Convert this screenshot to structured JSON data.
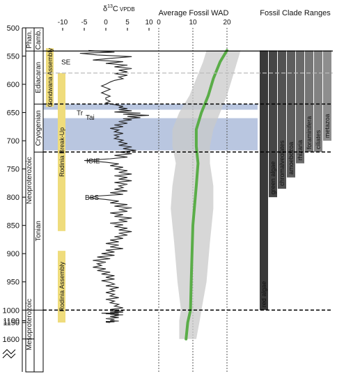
{
  "chart_data": {
    "type": "line",
    "y_axis": {
      "ticks": [
        "500",
        "550",
        "600",
        "650",
        "700",
        "750",
        "800",
        "850",
        "900",
        "950",
        "1000",
        "1100",
        "1150",
        "1600"
      ],
      "label": ""
    },
    "strat": {
      "eons": [
        {
          "label": "Phan.",
          "from": 500,
          "to": 541
        },
        {
          "label": "Neoproterozoic",
          "from": 541,
          "to": 1000
        },
        {
          "label": "Mesoproterozoic",
          "from": 1000,
          "to": 1600
        }
      ],
      "periods": [
        {
          "label": "Camb.",
          "from": 500,
          "to": 541
        },
        {
          "label": "Ediacaran",
          "from": 541,
          "to": 635
        },
        {
          "label": "Cryogenian",
          "from": 635,
          "to": 720
        },
        {
          "label": "Tonian",
          "from": 720,
          "to": 1000
        }
      ],
      "events": [
        {
          "label": "Gondwana Assembly",
          "from": 536,
          "to": 640
        },
        {
          "label": "Rodinia Break-Up",
          "from": 580,
          "to": 860
        },
        {
          "label": "Rodinia Assembly",
          "from": 895,
          "to": 1150
        }
      ],
      "glaciations": [
        {
          "from": 635,
          "to": 645
        },
        {
          "from": 660,
          "to": 717
        }
      ]
    },
    "d13c": {
      "title_prefix": "δ",
      "title_sup": "13",
      "title_main": "C",
      "title_sub": "VPDB",
      "ticks": [
        "-10",
        "-5",
        "0",
        "5",
        "10"
      ],
      "tick_values": [
        -10,
        -5,
        0,
        5,
        10
      ],
      "events": [
        {
          "label": "SE",
          "age": 560
        },
        {
          "label": "Tr",
          "age": 650
        },
        {
          "label": "Tai",
          "age": 658
        },
        {
          "label": "ICIE",
          "age": 735
        },
        {
          "label": "BSS",
          "age": 800
        }
      ],
      "series": [
        [
          540,
          -4
        ],
        [
          543,
          2
        ],
        [
          545,
          -6
        ],
        [
          548,
          -2
        ],
        [
          551,
          6
        ],
        [
          554,
          1
        ],
        [
          557,
          -3
        ],
        [
          560,
          4
        ],
        [
          563,
          0
        ],
        [
          566,
          5
        ],
        [
          569,
          2
        ],
        [
          572,
          6
        ],
        [
          575,
          3
        ],
        [
          578,
          5
        ],
        [
          581,
          2
        ],
        [
          584,
          5
        ],
        [
          587,
          3
        ],
        [
          590,
          4
        ],
        [
          593,
          2
        ],
        [
          596,
          1
        ],
        [
          600,
          0
        ],
        [
          603,
          -1
        ],
        [
          606,
          0
        ],
        [
          609,
          1
        ],
        [
          612,
          0
        ],
        [
          615,
          -1
        ],
        [
          618,
          0
        ],
        [
          621,
          1
        ],
        [
          624,
          0
        ],
        [
          627,
          0
        ],
        [
          630,
          1
        ],
        [
          633,
          0
        ],
        [
          636,
          2
        ],
        [
          639,
          4
        ],
        [
          641,
          3
        ],
        [
          643,
          5
        ],
        [
          645,
          3
        ],
        [
          647,
          6
        ],
        [
          649,
          2
        ],
        [
          651,
          8
        ],
        [
          653,
          4
        ],
        [
          655,
          10
        ],
        [
          657,
          5
        ],
        [
          659,
          8
        ],
        [
          661,
          4
        ],
        [
          663,
          6
        ],
        [
          666,
          3
        ],
        [
          669,
          5
        ],
        [
          672,
          2
        ],
        [
          675,
          4
        ],
        [
          678,
          1
        ],
        [
          681,
          3
        ],
        [
          684,
          2
        ],
        [
          687,
          4
        ],
        [
          690,
          2
        ],
        [
          693,
          3
        ],
        [
          696,
          2
        ],
        [
          699,
          4
        ],
        [
          702,
          3
        ],
        [
          705,
          5
        ],
        [
          708,
          3
        ],
        [
          711,
          6
        ],
        [
          714,
          4
        ],
        [
          717,
          7
        ],
        [
          720,
          3
        ],
        [
          723,
          6
        ],
        [
          726,
          2
        ],
        [
          729,
          5
        ],
        [
          732,
          1
        ],
        [
          735,
          -5
        ],
        [
          738,
          0
        ],
        [
          741,
          3
        ],
        [
          744,
          1
        ],
        [
          747,
          4
        ],
        [
          750,
          2
        ],
        [
          753,
          5
        ],
        [
          756,
          3
        ],
        [
          759,
          6
        ],
        [
          762,
          2
        ],
        [
          765,
          5
        ],
        [
          768,
          3
        ],
        [
          771,
          6
        ],
        [
          774,
          2
        ],
        [
          777,
          5
        ],
        [
          780,
          3
        ],
        [
          783,
          4
        ],
        [
          786,
          2
        ],
        [
          789,
          5
        ],
        [
          792,
          1
        ],
        [
          795,
          4
        ],
        [
          798,
          -2
        ],
        [
          801,
          -4
        ],
        [
          804,
          0
        ],
        [
          807,
          3
        ],
        [
          810,
          1
        ],
        [
          813,
          5
        ],
        [
          816,
          2
        ],
        [
          819,
          6
        ],
        [
          822,
          3
        ],
        [
          825,
          5
        ],
        [
          828,
          1
        ],
        [
          831,
          4
        ],
        [
          834,
          2
        ],
        [
          837,
          6
        ],
        [
          840,
          3
        ],
        [
          843,
          5
        ],
        [
          846,
          1
        ],
        [
          849,
          4
        ],
        [
          852,
          2
        ],
        [
          855,
          5
        ],
        [
          858,
          3
        ],
        [
          861,
          6
        ],
        [
          864,
          3
        ],
        [
          867,
          5
        ],
        [
          870,
          2
        ],
        [
          873,
          4
        ],
        [
          876,
          1
        ],
        [
          879,
          3
        ],
        [
          882,
          0
        ],
        [
          885,
          3
        ],
        [
          888,
          1
        ],
        [
          891,
          4
        ],
        [
          894,
          0
        ],
        [
          897,
          2
        ],
        [
          900,
          -1
        ],
        [
          903,
          2
        ],
        [
          906,
          -2
        ],
        [
          909,
          1
        ],
        [
          912,
          -3
        ],
        [
          915,
          0
        ],
        [
          918,
          -2
        ],
        [
          921,
          -1
        ],
        [
          924,
          -3
        ],
        [
          927,
          0
        ],
        [
          930,
          -2
        ],
        [
          933,
          1
        ],
        [
          936,
          -1
        ],
        [
          939,
          2
        ],
        [
          942,
          0
        ],
        [
          945,
          2
        ],
        [
          948,
          -1
        ],
        [
          951,
          1
        ],
        [
          954,
          2
        ],
        [
          957,
          0
        ],
        [
          960,
          3
        ],
        [
          963,
          1
        ],
        [
          966,
          2
        ],
        [
          969,
          0
        ],
        [
          972,
          2
        ],
        [
          975,
          1
        ],
        [
          978,
          3
        ],
        [
          981,
          0
        ],
        [
          984,
          2
        ],
        [
          987,
          1
        ],
        [
          990,
          3
        ],
        [
          993,
          2
        ],
        [
          996,
          4
        ],
        [
          999,
          1
        ],
        [
          1002,
          3
        ],
        [
          1005,
          2
        ],
        [
          1008,
          4
        ],
        [
          1011,
          1
        ],
        [
          1014,
          3
        ],
        [
          1017,
          2
        ],
        [
          1020,
          4
        ],
        [
          1023,
          1
        ],
        [
          1026,
          3
        ],
        [
          1029,
          -1
        ],
        [
          1032,
          2
        ],
        [
          1035,
          0
        ],
        [
          1038,
          3
        ],
        [
          1041,
          1
        ],
        [
          1044,
          4
        ],
        [
          1047,
          2
        ],
        [
          1050,
          3
        ],
        [
          1060,
          1
        ],
        [
          1070,
          3
        ],
        [
          1080,
          0
        ],
        [
          1090,
          2
        ],
        [
          1100,
          1
        ],
        [
          1110,
          3
        ],
        [
          1120,
          0
        ],
        [
          1130,
          2
        ],
        [
          1140,
          0
        ],
        [
          1150,
          1
        ]
      ]
    },
    "wad": {
      "title": "Average Fossil WAD",
      "ticks": [
        "0",
        "10",
        "20"
      ],
      "tick_values": [
        0,
        10,
        20
      ],
      "mean": [
        [
          540,
          20
        ],
        [
          560,
          18
        ],
        [
          590,
          16
        ],
        [
          620,
          14.5
        ],
        [
          650,
          12.5
        ],
        [
          680,
          11
        ],
        [
          710,
          11
        ],
        [
          740,
          11.5
        ],
        [
          780,
          11
        ],
        [
          850,
          10
        ],
        [
          950,
          9.5
        ],
        [
          1000,
          9.3
        ],
        [
          1150,
          8.5
        ],
        [
          1600,
          8
        ]
      ],
      "band": [
        [
          540,
          14,
          24
        ],
        [
          560,
          13,
          23
        ],
        [
          590,
          11,
          21.5
        ],
        [
          620,
          9,
          20
        ],
        [
          650,
          6,
          18
        ],
        [
          680,
          4,
          16
        ],
        [
          710,
          4,
          15
        ],
        [
          740,
          5,
          15
        ],
        [
          780,
          4,
          16
        ],
        [
          820,
          3.5,
          16
        ],
        [
          880,
          4.5,
          15
        ],
        [
          950,
          5.5,
          14
        ],
        [
          1000,
          6.5,
          12.5
        ],
        [
          1100,
          6,
          12
        ],
        [
          1600,
          6,
          11
        ]
      ]
    },
    "clades": {
      "title": "Fossil Clade Ranges",
      "ranges": [
        {
          "name": "red algae",
          "from": 540,
          "to": 1000
        },
        {
          "name": "green algae",
          "from": 540,
          "to": 800
        },
        {
          "name": "chromalveolates",
          "from": 540,
          "to": 785
        },
        {
          "name": "amoebozoa",
          "from": 540,
          "to": 765
        },
        {
          "name": "rhizaria",
          "from": 540,
          "to": 740
        },
        {
          "name": "foraminifera",
          "from": 540,
          "to": 720
        },
        {
          "name": "ciliates",
          "from": 540,
          "to": 720
        },
        {
          "name": "metazoa",
          "from": 540,
          "to": 700
        }
      ]
    }
  }
}
